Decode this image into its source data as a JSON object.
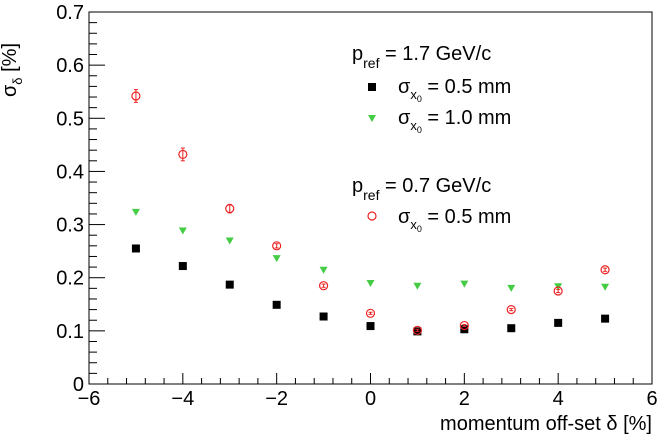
{
  "chart_data": {
    "type": "scatter",
    "xlabel": "momentum off-set δ [%]",
    "ylabel": "σδ [%]",
    "ylabel_main": "σ",
    "ylabel_sub": "δ",
    "ylabel_unit": "[%]",
    "xlim": [
      -6,
      6
    ],
    "ylim": [
      0,
      0.7
    ],
    "x_ticks": [
      -6,
      -4,
      -2,
      0,
      2,
      4,
      6
    ],
    "x_tick_labels": [
      "−6",
      "−4",
      "−2",
      "0",
      "2",
      "4",
      "6"
    ],
    "y_ticks": [
      0,
      0.1,
      0.2,
      0.3,
      0.4,
      0.5,
      0.6,
      0.7
    ],
    "y_tick_labels": [
      "0",
      "0.1",
      "0.2",
      "0.3",
      "0.4",
      "0.5",
      "0.6",
      "0.7"
    ],
    "grid": false,
    "legend_placement": "top-right",
    "legend": {
      "group1_header": {
        "main": "p",
        "sub": "ref",
        "rest": " = 1.7 GeV/c"
      },
      "group2_header": {
        "main": "p",
        "sub": "ref",
        "rest": " = 0.7 GeV/c"
      },
      "entries": [
        {
          "series": 0,
          "main": "σ",
          "sub": "x",
          "subsub": "0",
          "rest": " = 0.5 mm"
        },
        {
          "series": 1,
          "main": "σ",
          "sub": "x",
          "subsub": "0",
          "rest": " = 1.0  mm"
        },
        {
          "series": 2,
          "main": "σ",
          "sub": "x",
          "subsub": "0",
          "rest": " = 0.5 mm"
        }
      ]
    },
    "series": [
      {
        "marker": "square",
        "color": "#000000",
        "x": [
          -5,
          -4,
          -3,
          -2,
          -1,
          0,
          1,
          2,
          3,
          4,
          5
        ],
        "y": [
          0.255,
          0.222,
          0.187,
          0.149,
          0.127,
          0.109,
          0.099,
          0.103,
          0.105,
          0.115,
          0.123
        ]
      },
      {
        "marker": "triangle-down",
        "color": "#44cc44",
        "x": [
          -5,
          -4,
          -3,
          -2,
          -1,
          0,
          1,
          2,
          3,
          4,
          5
        ],
        "y": [
          0.323,
          0.288,
          0.269,
          0.236,
          0.214,
          0.189,
          0.184,
          0.188,
          0.18,
          0.183,
          0.182
        ]
      },
      {
        "marker": "circle-open",
        "color": "#ee2222",
        "x": [
          -5,
          -4,
          -3,
          -2,
          -1,
          0,
          1,
          2,
          3,
          4,
          5
        ],
        "y": [
          0.542,
          0.432,
          0.33,
          0.26,
          0.185,
          0.133,
          0.101,
          0.11,
          0.14,
          0.175,
          0.215
        ],
        "err": [
          0.012,
          0.012,
          0.008,
          0.004,
          0.003,
          0.002,
          0.002,
          0.002,
          0.002,
          0.003,
          0.003
        ]
      }
    ]
  }
}
